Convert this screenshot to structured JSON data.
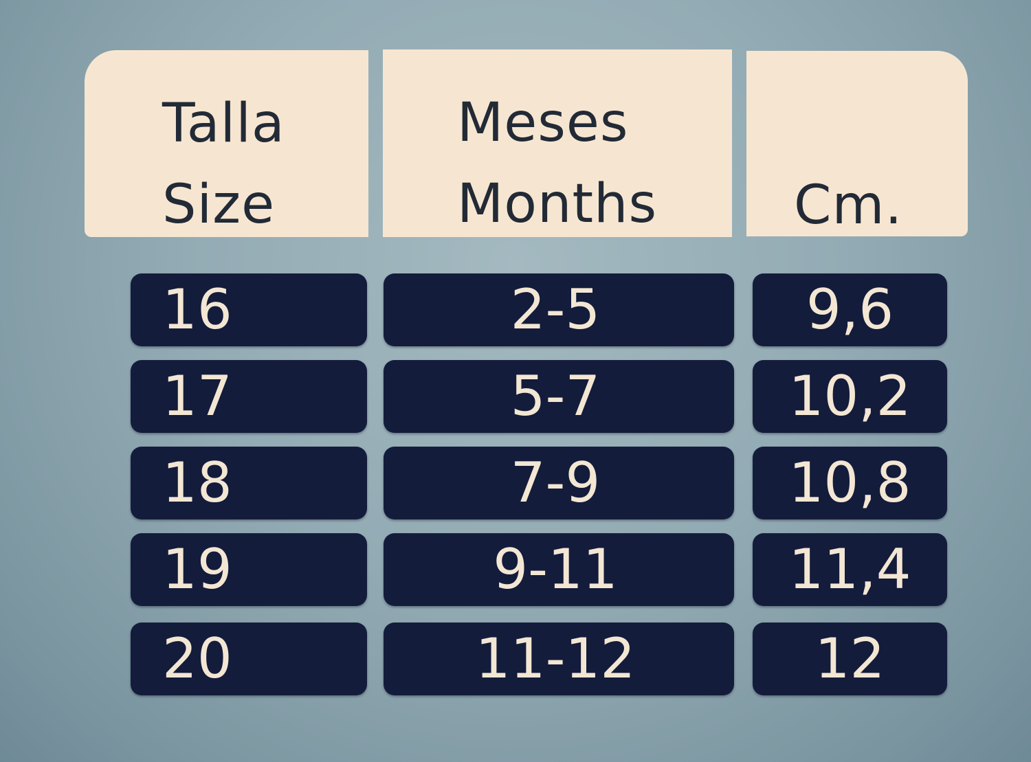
{
  "headers": {
    "size": {
      "line1": "Talla",
      "line2": "Size"
    },
    "months": {
      "line1": "Meses",
      "line2": "Months"
    },
    "cm": {
      "line1": "Cm."
    }
  },
  "rows": [
    {
      "size": "16",
      "months": "2-5",
      "cm": "9,6"
    },
    {
      "size": "17",
      "months": "5-7",
      "cm": "10,2"
    },
    {
      "size": "18",
      "months": "7-9",
      "cm": "10,8"
    },
    {
      "size": "19",
      "months": "9-11",
      "cm": "11,4"
    },
    {
      "size": "20",
      "months": "11-12",
      "cm": "12"
    }
  ],
  "colors": {
    "background": "#93abb4",
    "header_fill": "#f6e6d1",
    "header_text": "#222a36",
    "cell_fill": "#141c3b",
    "cell_text": "#f3e7d4"
  }
}
